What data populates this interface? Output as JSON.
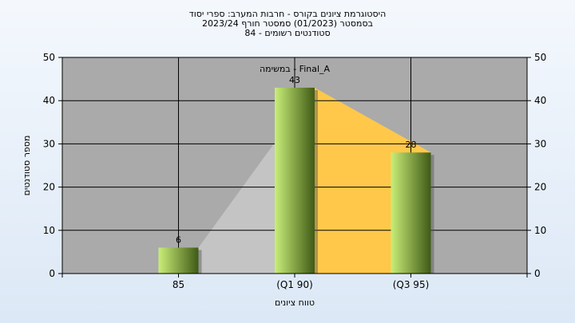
{
  "chart_data": {
    "type": "bar",
    "title_lines": [
      "היסטוגרמת ציונים בקורס - חרבות המערב: ספרי יסוד",
      "בסמסטר  (01/2023)  סמסטר חורף  2023/24",
      "סטודנטים רשומים - 84"
    ],
    "subtitle": "במשימה - Final_A",
    "xlabel": "טווח ציונים",
    "ylabel": "מספר סטודנטים",
    "categories": [
      "85",
      "(Q1 90)",
      "(Q3 95)"
    ],
    "values": [
      6,
      43,
      28
    ],
    "data_labels": [
      "6",
      "43",
      "28"
    ],
    "ylim": [
      0,
      50
    ],
    "yticks": [
      0,
      10,
      20,
      30,
      40,
      50
    ],
    "ytick_labels": [
      "0",
      "10",
      "20",
      "30",
      "40",
      "50"
    ],
    "grid": true,
    "colors": {
      "plot_bg": "#aaaaaa",
      "bar_light": "#c9ee78",
      "bar_dark": "#3f5a16",
      "area_gray": "#c4c4c4",
      "area_yellow": "#ffc84a",
      "grid": "#000000"
    }
  }
}
